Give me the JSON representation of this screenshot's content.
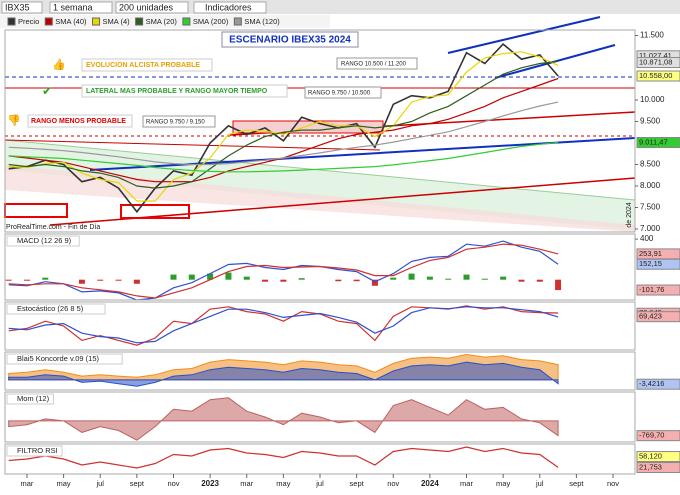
{
  "toolbar": {
    "symbol": "IBX35",
    "period": "1 semana",
    "units": "200 unidades",
    "indicators": "Indicadores"
  },
  "chart_data": [
    {
      "type": "line",
      "title": "ESCENARIO IBEX35 2024",
      "annotations": [
        "EVOLUCION ALCISTA PROBABLE",
        "LATERAL MAS PROBABLE Y RANGO MAYOR TIEMPO",
        "RANGO MENOS PROBABLE",
        "RANGO 10.500 / 11.200",
        "RANGO 9.750 / 10.500",
        "RANGO 9.750 / 9.150",
        "ProRealTime.com - Fin de Día",
        "de 2024"
      ],
      "x": [
        1,
        2,
        3,
        4,
        5,
        6,
        7,
        8,
        9,
        10,
        11,
        12,
        13,
        14,
        15,
        16,
        17,
        18,
        19,
        20,
        21,
        22,
        23,
        24,
        25,
        26,
        27,
        28,
        29,
        30,
        31
      ],
      "xlim": [
        0.8,
        35.2
      ],
      "xticks": [
        {
          "value": 2,
          "label": "mar"
        },
        {
          "value": 4,
          "label": "may"
        },
        {
          "value": 6,
          "label": "jul"
        },
        {
          "value": 8,
          "label": "sept"
        },
        {
          "value": 10,
          "label": "nov"
        },
        {
          "value": 12,
          "label": "2023"
        },
        {
          "value": 14,
          "label": "mar"
        },
        {
          "value": 16,
          "label": "may"
        },
        {
          "value": 18,
          "label": "jul"
        },
        {
          "value": 20,
          "label": "sept"
        },
        {
          "value": 22,
          "label": "nov"
        },
        {
          "value": 24,
          "label": "2024"
        },
        {
          "value": 26,
          "label": "mar"
        },
        {
          "value": 28,
          "label": "may"
        },
        {
          "value": 30,
          "label": "jul"
        },
        {
          "value": 32,
          "label": "sept"
        },
        {
          "value": 34,
          "label": "nov"
        }
      ],
      "ylim": [
        6930,
        11628
      ],
      "yticks": [
        {
          "value": 7000,
          "label": "7.000"
        },
        {
          "value": 7500,
          "label": "7.500"
        },
        {
          "value": 8000,
          "label": "8.000"
        },
        {
          "value": 8500,
          "label": "8.500"
        },
        {
          "value": 9500,
          "label": "9.500"
        },
        {
          "value": 10000,
          "label": "10.000"
        },
        {
          "value": 11500,
          "label": "11.500"
        }
      ],
      "levels": [
        {
          "value": 11027.41,
          "label": "11.027,41",
          "color": "#e0e0e0"
        },
        {
          "value": 10871.08,
          "label": "10.871,08",
          "color": "#e0e0e0"
        },
        {
          "value": 10558,
          "label": "10.558,00",
          "color": "#ffff80"
        },
        {
          "value": 9011.47,
          "label": "9.011,47",
          "color": "#33cc33"
        }
      ],
      "series": [
        {
          "name": "Precio",
          "color": "#333333",
          "values": [
            8400,
            8450,
            8600,
            8500,
            8100,
            8200,
            7950,
            7400,
            7950,
            8350,
            8250,
            9000,
            9400,
            9200,
            9350,
            9050,
            9600,
            9450,
            9350,
            9450,
            8900,
            9900,
            10100,
            10050,
            10200,
            11100,
            10850,
            11300,
            10950,
            11050,
            10558
          ]
        },
        {
          "name": "SMA (40)",
          "color": "#c00000",
          "values": [
            8700,
            8650,
            8600,
            8550,
            8450,
            8350,
            8250,
            8150,
            8100,
            8100,
            8100,
            8200,
            8350,
            8450,
            8550,
            8650,
            8800,
            8950,
            9100,
            9200,
            9250,
            9300,
            9400,
            9450,
            9550,
            9700,
            9850,
            10050,
            10200,
            10350,
            10500
          ]
        },
        {
          "name": "SMA (4)",
          "color": "#e8d800",
          "values": [
            8450,
            8430,
            8520,
            8550,
            8300,
            8150,
            8080,
            7650,
            7650,
            8150,
            8300,
            8650,
            9200,
            9300,
            9280,
            9200,
            9350,
            9500,
            9400,
            9400,
            9150,
            9400,
            9950,
            10080,
            10120,
            10650,
            10980,
            11080,
            11120,
            11000,
            10800
          ]
        },
        {
          "name": "SMA (20)",
          "color": "#2e5e1e",
          "values": [
            8500,
            8450,
            8500,
            8450,
            8350,
            8300,
            8200,
            8000,
            7950,
            8000,
            8100,
            8400,
            8700,
            8950,
            9150,
            9250,
            9300,
            9300,
            9350,
            9400,
            9350,
            9400,
            9500,
            9700,
            9850,
            10100,
            10350,
            10600,
            10750,
            10850,
            10900
          ]
        },
        {
          "name": "SMA (200)",
          "color": "#33cc33",
          "values": [
            8700,
            8680,
            8660,
            8640,
            8600,
            8560,
            8520,
            8480,
            8430,
            8390,
            8360,
            8340,
            8330,
            8330,
            8340,
            8350,
            8370,
            8390,
            8410,
            8430,
            8450,
            8490,
            8540,
            8590,
            8640,
            8710,
            8780,
            8850,
            8920,
            8970,
            9011
          ]
        },
        {
          "name": "SMA (120)",
          "color": "#999999",
          "values": [
            8900,
            8880,
            8850,
            8820,
            8780,
            8730,
            8680,
            8620,
            8560,
            8520,
            8500,
            8500,
            8520,
            8560,
            8600,
            8650,
            8710,
            8770,
            8840,
            8900,
            8950,
            9020,
            9100,
            9180,
            9260,
            9380,
            9500,
            9630,
            9750,
            9860,
            9950
          ]
        }
      ]
    },
    {
      "type": "line",
      "title": "MACD (12 26 9)",
      "ylim": [
        -200,
        450
      ],
      "yticks": [
        400
      ],
      "levels": [
        {
          "value": 253.91,
          "label": "253,91",
          "color": "#f4b0b0"
        },
        {
          "value": 152.15,
          "label": "152,15",
          "color": "#b0c4f4"
        },
        {
          "value": -101.76,
          "label": "-101,76",
          "color": "#f4b0b0"
        }
      ],
      "histogram": {
        "color": "#2a9d2a",
        "values": [
          -10,
          -10,
          20,
          0,
          -40,
          -10,
          -10,
          -40,
          0,
          50,
          50,
          60,
          70,
          30,
          -20,
          -20,
          15,
          0,
          -15,
          -15,
          -60,
          20,
          60,
          30,
          10,
          50,
          10,
          30,
          -20,
          -20,
          -102
        ]
      },
      "series": [
        {
          "color": "#3050d0",
          "values": [
            -50,
            -60,
            -20,
            -40,
            -120,
            -110,
            -130,
            -200,
            -180,
            -80,
            -30,
            60,
            150,
            160,
            120,
            100,
            140,
            130,
            100,
            80,
            -20,
            60,
            180,
            220,
            230,
            350,
            330,
            380,
            320,
            280,
            152
          ]
        },
        {
          "color": "#d03030",
          "values": [
            -40,
            -50,
            -40,
            -40,
            -80,
            -100,
            -120,
            -160,
            -180,
            -130,
            -80,
            0,
            80,
            130,
            140,
            120,
            125,
            130,
            115,
            95,
            40,
            40,
            120,
            190,
            220,
            300,
            320,
            350,
            340,
            300,
            254
          ]
        }
      ]
    },
    {
      "type": "line",
      "title": "Estocástico (26 8 5)",
      "ylim": [
        0,
        100
      ],
      "levels": [
        {
          "value": 76.645,
          "label": "76,645",
          "color": "#f4b0b0"
        },
        {
          "value": 69.423,
          "label": "69,423",
          "color": "#f4b0b0"
        }
      ],
      "series": [
        {
          "color": "#d03030",
          "values": [
            40,
            45,
            60,
            50,
            20,
            30,
            20,
            10,
            25,
            60,
            55,
            85,
            90,
            80,
            75,
            60,
            80,
            75,
            60,
            55,
            20,
            70,
            90,
            88,
            85,
            92,
            85,
            90,
            80,
            78,
            77
          ]
        },
        {
          "color": "#3050d0",
          "values": [
            45,
            42,
            52,
            55,
            35,
            28,
            25,
            15,
            18,
            40,
            55,
            70,
            85,
            85,
            78,
            68,
            72,
            76,
            68,
            58,
            35,
            50,
            78,
            88,
            86,
            90,
            88,
            88,
            84,
            80,
            69
          ]
        }
      ]
    },
    {
      "type": "area",
      "title": "Blai5 Koncorde v.09 (15)",
      "ylim": [
        -8,
        22
      ],
      "levels": [
        {
          "value": -3.4216,
          "label": "-3,4216",
          "color": "#b0c4f4"
        }
      ],
      "series": [
        {
          "color": "#f08c1e",
          "values": [
            5,
            6,
            8,
            6,
            3,
            4,
            3,
            2,
            4,
            8,
            9,
            14,
            16,
            15,
            14,
            12,
            15,
            14,
            12,
            11,
            6,
            13,
            17,
            18,
            17,
            20,
            18,
            19,
            16,
            15,
            12
          ]
        },
        {
          "color": "#2850c8",
          "values": [
            2,
            2,
            4,
            3,
            -2,
            -1,
            -3,
            -5,
            -2,
            3,
            4,
            8,
            10,
            9,
            8,
            6,
            9,
            8,
            6,
            5,
            0,
            7,
            11,
            12,
            11,
            14,
            12,
            13,
            10,
            8,
            -3
          ]
        }
      ]
    },
    {
      "type": "area",
      "title": "Mom (12)",
      "ylim": [
        -1100,
        1500
      ],
      "levels": [
        {
          "value": -769.7,
          "label": "-769,70",
          "color": "#f4b0b0"
        }
      ],
      "series": [
        {
          "color": "#c06060",
          "values": [
            -300,
            -200,
            100,
            0,
            -600,
            -300,
            -500,
            -1000,
            -300,
            600,
            500,
            1100,
            1200,
            500,
            200,
            -200,
            400,
            200,
            -100,
            0,
            -600,
            800,
            1100,
            700,
            300,
            1100,
            600,
            700,
            100,
            -100,
            -770
          ]
        }
      ]
    },
    {
      "type": "line",
      "title": "FILTRO RSI",
      "ylim": [
        0,
        100
      ],
      "levels": [
        {
          "value": 58.12,
          "label": "58,120",
          "color": "#ffff80"
        },
        {
          "value": 21.753,
          "label": "21,753",
          "color": "#f4b0b0"
        }
      ],
      "series": [
        {
          "color": "#d03030",
          "values": [
            45,
            50,
            60,
            50,
            30,
            40,
            30,
            20,
            35,
            65,
            60,
            80,
            85,
            70,
            65,
            55,
            75,
            70,
            60,
            60,
            30,
            75,
            85,
            80,
            75,
            90,
            75,
            85,
            70,
            65,
            22
          ]
        }
      ]
    }
  ]
}
